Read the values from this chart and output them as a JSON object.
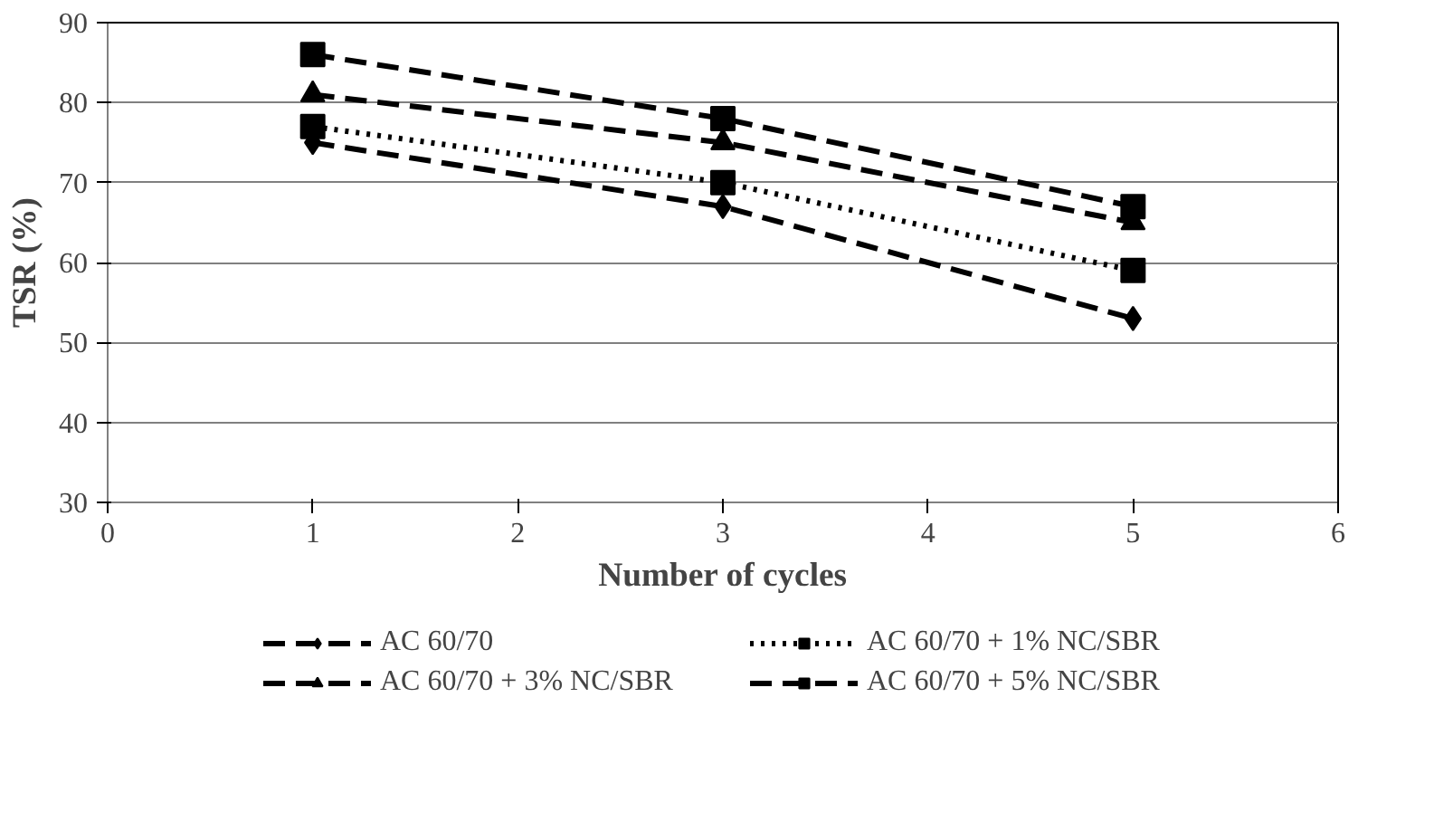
{
  "chart_data": {
    "type": "line",
    "xlabel": "Number of cycles",
    "ylabel": "TSR (%)",
    "x": [
      1,
      3,
      5
    ],
    "series": [
      {
        "name": "AC 60/70",
        "color": "#000000",
        "values": [
          75,
          67,
          53
        ],
        "marker": "diamond",
        "line_style": "dashed"
      },
      {
        "name": "AC 60/70 + 1% NC/SBR",
        "color": "#000000",
        "values": [
          77,
          70,
          59
        ],
        "marker": "square",
        "line_style": "dotted"
      },
      {
        "name": "AC 60/70 + 3% NC/SBR",
        "color": "#000000",
        "values": [
          81,
          75,
          65
        ],
        "marker": "triangle",
        "line_style": "dashed"
      },
      {
        "name": "AC 60/70 + 5% NC/SBR",
        "color": "#000000",
        "values": [
          86,
          78,
          67
        ],
        "marker": "square",
        "line_style": "dashed"
      }
    ],
    "xlim": [
      0,
      6
    ],
    "xticks": [
      0,
      1,
      2,
      3,
      4,
      5,
      6
    ],
    "ylim": [
      30,
      90
    ],
    "yticks": [
      30,
      40,
      50,
      60,
      70,
      80,
      90
    ],
    "grid": "y",
    "legend": "bottom"
  }
}
